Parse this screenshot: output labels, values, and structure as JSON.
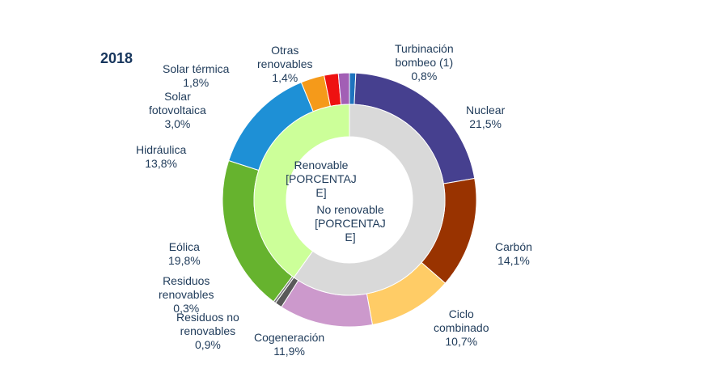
{
  "chart_data": {
    "type": "pie",
    "title": "2018",
    "outer_ring": {
      "categories": [
        "Turbinación bombeo (1)",
        "Nuclear",
        "Carbón",
        "Ciclo combinado",
        "Cogeneración",
        "Residuos no renovables",
        "Residuos renovables",
        "Eólica",
        "Hidráulica",
        "Solar fotovoltaica",
        "Solar térmica",
        "Otras renovables"
      ],
      "values": [
        0.8,
        21.5,
        14.1,
        10.7,
        11.9,
        0.9,
        0.3,
        19.8,
        13.8,
        3.0,
        1.8,
        1.4
      ],
      "value_labels": [
        "0,8%",
        "21,5%",
        "14,1%",
        "10,7%",
        "11,9%",
        "0,9%",
        "0,3%",
        "19,8%",
        "13,8%",
        "3,0%",
        "1,8%",
        "1,4%"
      ],
      "colors": [
        "#1e73be",
        "#46408f",
        "#993300",
        "#ffcc66",
        "#cc99cc",
        "#595959",
        "#7a7a7a",
        "#66b32e",
        "#1e90d6",
        "#f59a1a",
        "#ee1111",
        "#a25fb5"
      ]
    },
    "inner_ring": {
      "categories": [
        "No renovable",
        "Renovable"
      ],
      "values": [
        59.9,
        40.1
      ],
      "value_labels": [
        "[PORCENTAJE]",
        "[PORCENTAJE]"
      ],
      "colors": [
        "#d9d9d9",
        "#ccff99"
      ]
    }
  },
  "labels": {
    "year": "2018",
    "turbinacion": {
      "name": "Turbinación\nbombeo (1)",
      "value": "0,8%"
    },
    "nuclear": {
      "name": "Nuclear",
      "value": "21,5%"
    },
    "carbon": {
      "name": "Carbón",
      "value": "14,1%"
    },
    "ciclo": {
      "name": "Ciclo\ncombinado",
      "value": "10,7%"
    },
    "cogeneracion": {
      "name": "Cogeneración",
      "value": "11,9%"
    },
    "residuos_no": {
      "name": "Residuos no\nrenovables",
      "value": "0,9%"
    },
    "residuos_ren": {
      "name": "Residuos\nrenovables",
      "value": "0,3%"
    },
    "eolica": {
      "name": "Eólica",
      "value": "19,8%"
    },
    "hidraulica": {
      "name": "Hidráulica",
      "value": "13,8%"
    },
    "solar_fv": {
      "name": "Solar\nfotovoltaica",
      "value": "3,0%"
    },
    "solar_termica": {
      "name": "Solar térmica",
      "value": "1,8%"
    },
    "otras": {
      "name": "Otras\nrenovables",
      "value": "1,4%"
    },
    "renovable": "Renovable\n[PORCENTAJ\nE]",
    "no_renovable": "No renovable\n[PORCENTAJ\nE]"
  }
}
